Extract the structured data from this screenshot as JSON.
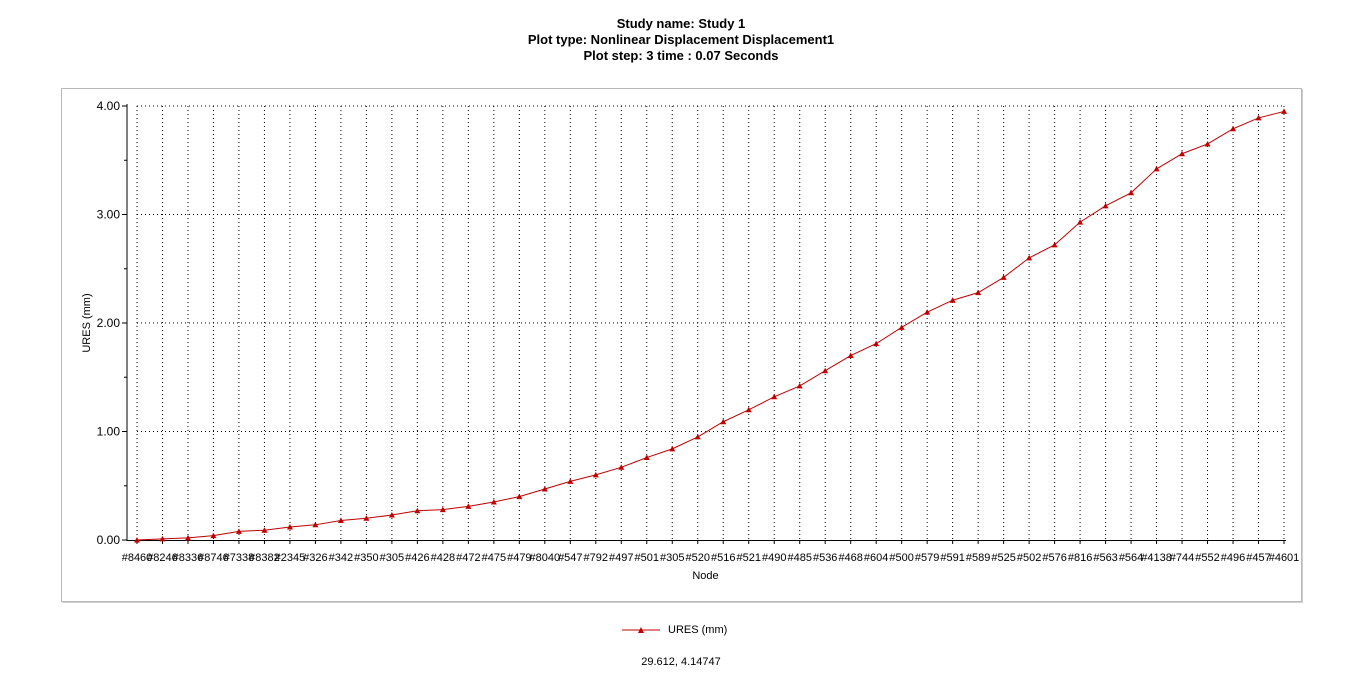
{
  "title_lines": [
    "Study name: Study 1",
    "Plot type: Nonlinear Displacement Displacement1",
    "Plot step: 3   time : 0.07 Seconds"
  ],
  "colors": {
    "series": "#c00000",
    "grid": "#000000",
    "frame": "#b8b8b8"
  },
  "legend": {
    "label": "URES (mm)",
    "position": "bottom-center",
    "marker": "triangle"
  },
  "cursor_readout": "29.612, 4.14747",
  "chart_data": {
    "type": "line",
    "xlabel": "Node",
    "ylabel": "URES (mm)",
    "ylim": [
      0,
      4
    ],
    "yticks": [
      "0.00",
      "1.00",
      "2.00",
      "3.00",
      "4.00"
    ],
    "grid": true,
    "categories": [
      "#8460",
      "#8246",
      "#8336",
      "#8746",
      "#7338",
      "#8382",
      "#2345",
      "#326",
      "#342",
      "#350",
      "#305",
      "#426",
      "#428",
      "#472",
      "#475",
      "#479",
      "#8040",
      "#547",
      "#792",
      "#497",
      "#501",
      "#305",
      "#520",
      "#516",
      "#521",
      "#490",
      "#485",
      "#536",
      "#468",
      "#604",
      "#500",
      "#579",
      "#591",
      "#589",
      "#525",
      "#502",
      "#576",
      "#816",
      "#563",
      "#564",
      "#4138",
      "#744",
      "#552",
      "#496",
      "#457",
      "#4601"
    ],
    "series": [
      {
        "name": "URES (mm)",
        "values": [
          0.0,
          0.01,
          0.02,
          0.04,
          0.08,
          0.09,
          0.12,
          0.14,
          0.18,
          0.2,
          0.23,
          0.27,
          0.28,
          0.31,
          0.35,
          0.4,
          0.47,
          0.54,
          0.6,
          0.67,
          0.76,
          0.84,
          0.95,
          1.09,
          1.2,
          1.32,
          1.42,
          1.56,
          1.7,
          1.81,
          1.96,
          2.1,
          2.21,
          2.28,
          2.42,
          2.6,
          2.72,
          2.93,
          3.08,
          3.2,
          3.42,
          3.56,
          3.65,
          3.79,
          3.89,
          3.95
        ]
      }
    ]
  }
}
